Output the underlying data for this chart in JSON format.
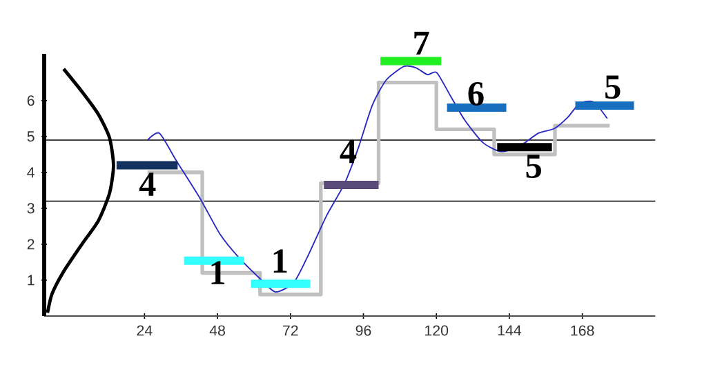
{
  "chart_data": {
    "type": "line",
    "xlim": [
      -9,
      192
    ],
    "ylim": [
      0,
      7.3
    ],
    "xticks": [
      24,
      48,
      72,
      96,
      120,
      144,
      168
    ],
    "yticks": [
      1,
      2,
      3,
      4,
      5,
      6
    ],
    "ref_lines": [
      {
        "axis": "y",
        "value": 4.9,
        "color": "#000000"
      },
      {
        "axis": "y",
        "value": 3.2,
        "color": "#000000"
      }
    ],
    "series": [
      {
        "color": "#000000",
        "x": [
          -2.6,
          3.5,
          8.8,
          12.5,
          13.8,
          12.5,
          8.8,
          3.5,
          -2.6,
          -6.4,
          -7.9
        ],
        "values": [
          6.88,
          6.24,
          5.62,
          4.96,
          4.19,
          3.42,
          2.65,
          2.01,
          1.24,
          0.62,
          0.09
        ]
      },
      {
        "type": "step",
        "color": "#c0c0c0",
        "x": [
          25,
          43,
          62,
          82,
          101,
          120,
          139,
          159,
          177
        ],
        "values": [
          4.0,
          1.2,
          0.6,
          3.7,
          6.5,
          5.2,
          4.5,
          5.3,
          5.3
        ]
      },
      {
        "color": "#2828c0",
        "x": [
          25.0,
          28.9,
          34.5,
          42.1,
          48.9,
          55.0,
          62.5,
          67.1,
          73.0,
          77.5,
          83.8,
          89.8,
          94.4,
          98.9,
          103.5,
          109.4,
          113.3,
          117.1,
          120.1,
          124.7,
          129.2,
          135.3,
          141.3,
          147.4,
          153.5,
          158.8,
          163.3,
          167.1,
          171.7,
          176.2
        ],
        "values": [
          4.9,
          5.09,
          4.32,
          3.3,
          2.27,
          1.63,
          1.0,
          0.67,
          0.92,
          1.63,
          2.78,
          3.69,
          4.7,
          5.86,
          6.57,
          6.95,
          6.91,
          6.72,
          6.78,
          6.12,
          5.47,
          4.83,
          4.58,
          4.73,
          5.09,
          5.22,
          5.54,
          5.92,
          5.96,
          5.5
        ]
      },
      {
        "color": "#14305e",
        "x": [
          14.8,
          34.9
        ],
        "values": [
          4.2,
          4.2
        ]
      },
      {
        "color": "#33ffff",
        "x": [
          37,
          56.7
        ],
        "values": [
          1.54,
          1.54
        ]
      },
      {
        "color": "#33ffff",
        "x": [
          59,
          78.5
        ],
        "values": [
          0.9,
          0.9
        ]
      },
      {
        "color": "#5a4a7a",
        "x": [
          83,
          101
        ],
        "values": [
          3.65,
          3.65
        ]
      },
      {
        "color": "#22ee22",
        "x": [
          101.6,
          121.6
        ],
        "values": [
          7.1,
          7.1
        ]
      },
      {
        "color": "#1a6ebe",
        "x": [
          123.5,
          143
        ],
        "values": [
          5.8,
          5.8
        ]
      },
      {
        "color": "#000000",
        "x": [
          140,
          158
        ],
        "values": [
          4.7,
          4.7
        ]
      },
      {
        "color": "#1a6ebe",
        "x": [
          165.7,
          185
        ],
        "values": [
          5.86,
          5.86
        ]
      }
    ],
    "annotations": [
      {
        "text": "4",
        "x": 25,
        "y": 4.0
      },
      {
        "text": "1",
        "x": 48,
        "y": 1.54
      },
      {
        "text": "1",
        "x": 68.5,
        "y": 1.2
      },
      {
        "text": "4",
        "x": 91,
        "y": 4.25
      },
      {
        "text": "7",
        "x": 115,
        "y": 7.27
      },
      {
        "text": "6",
        "x": 133,
        "y": 5.85
      },
      {
        "text": "5",
        "x": 152,
        "y": 4.5
      },
      {
        "text": "5",
        "x": 178,
        "y": 6.04
      }
    ]
  }
}
